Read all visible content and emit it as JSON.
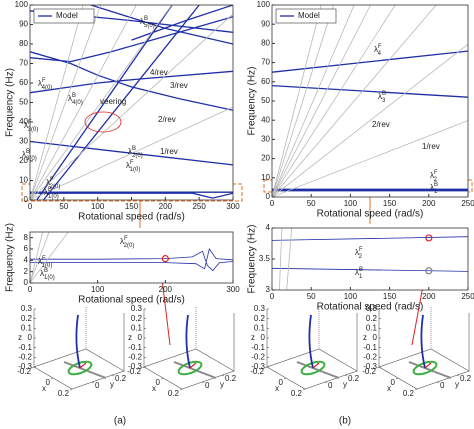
{
  "chart_data": [
    {
      "type": "line",
      "xlabel": "Rotational speed (rad/s)",
      "ylabel": "Frequency (Hz)",
      "xlim": [
        0,
        300
      ],
      "xticks": [
        0,
        50,
        100,
        150,
        200,
        250,
        300
      ],
      "ylim": [
        0,
        100
      ],
      "yticks": [
        0,
        10,
        20,
        30,
        40,
        50,
        60,
        70,
        80,
        90,
        100
      ],
      "legend": "upper left",
      "series": [
        {
          "name": "Model",
          "color": "#1f2fa8",
          "x": [
            0,
            150,
            300,
            null,
            90,
            200,
            300,
            null,
            150,
            230,
            300,
            null,
            0,
            60,
            120,
            200,
            300,
            null,
            0,
            60,
            100,
            150,
            220,
            300,
            null,
            0,
            60,
            100,
            160,
            300,
            null,
            10,
            210,
            null,
            20,
            250,
            null,
            0,
            150,
            300,
            null,
            0,
            300,
            null,
            0,
            240,
            270,
            300
          ],
          "values": [
            97,
            92,
            86,
            null,
            100,
            88,
            80,
            null,
            82,
            92,
            100,
            null,
            73,
            71,
            76,
            84,
            94,
            null,
            76,
            70,
            64,
            58,
            52,
            46,
            null,
            55,
            58,
            60,
            62,
            66,
            null,
            0,
            100,
            null,
            0,
            100,
            null,
            30,
            24,
            18,
            null,
            4,
            4,
            null,
            3.5,
            3.5,
            1,
            3.5
          ]
        },
        {
          "color": "#b8b8b8",
          "x": [
            0,
            300,
            null,
            0,
            300,
            null,
            0,
            209.4,
            null,
            0,
            157.1,
            null,
            0,
            104.7,
            null,
            0,
            78.5
          ],
          "values": [
            0,
            47.7,
            null,
            0,
            95.5,
            null,
            0,
            100,
            null,
            0,
            100,
            null,
            0,
            100,
            null,
            0,
            100
          ]
        }
      ],
      "annotations": [
        {
          "text": "λ",
          "sup": "B",
          "sub": "5(0)"
        },
        {
          "text": "λ",
          "sup": "F",
          "sub": "4(0)"
        },
        {
          "text": "λ",
          "sup": "B",
          "sub": "4(0)"
        },
        {
          "text": "λ",
          "sup": "F",
          "sub": "3(0)"
        },
        {
          "text": "λ",
          "sup": "B",
          "sub": "3(0)"
        },
        {
          "text": "λ",
          "sup": "B",
          "sub": "2(0)"
        },
        {
          "text": "λ",
          "sup": "F",
          "sub": "1(0)"
        },
        {
          "text": "λ",
          "sup": "F",
          "sub": "2(0)"
        },
        {
          "text": "λ",
          "sup": "B",
          "sub": "1(0)"
        },
        {
          "text": "4/rev",
          "color": "#d9541e"
        },
        {
          "text": "3/rev",
          "color": "#d9541e"
        },
        {
          "text": "2/rev",
          "color": "#d9541e"
        },
        {
          "text": "1/rev",
          "color": "#d9541e"
        },
        {
          "text": "veering",
          "color": "#e02020"
        }
      ]
    },
    {
      "type": "line",
      "xlabel": "Rotational speed (rad/s)",
      "ylabel": "Frequency (Hz)",
      "xlim": [
        0,
        300
      ],
      "xticks": [
        0,
        100,
        200,
        300
      ],
      "ylim": [
        0,
        9
      ],
      "yticks": [
        0,
        2,
        4,
        6,
        8
      ],
      "series": [
        {
          "color": "#1f2fa8",
          "x": [
            0,
            100,
            200,
            240,
            255,
            262,
            270,
            280,
            300,
            null,
            0,
            100,
            200,
            245,
            258,
            265,
            275,
            300
          ],
          "values": [
            4.2,
            4.2,
            4.3,
            4.6,
            5.6,
            3.1,
            2.2,
            3.6,
            3.8,
            null,
            3.6,
            3.6,
            3.6,
            3.4,
            2.5,
            6,
            4.3,
            4.1
          ]
        },
        {
          "color": "#b8b8b8",
          "x": [
            0,
            56.5,
            null,
            0,
            28.3,
            null,
            0,
            18.8
          ],
          "values": [
            0,
            9,
            null,
            0,
            9,
            null,
            0,
            9
          ]
        },
        {
          "color": "#e02020",
          "marker": "circle",
          "x": [
            200
          ],
          "values": [
            4.3
          ]
        }
      ],
      "annotations": [
        {
          "text": "λ",
          "sup": "F",
          "sub": "2(0)"
        },
        {
          "text": "λ",
          "sup": "F",
          "sub": "1(0)"
        },
        {
          "text": "λ",
          "sup": "B",
          "sub": "1(0)"
        }
      ]
    },
    {
      "type": "line",
      "xlabel": "Rotational speed (rad/s)",
      "ylabel": "Frequency (Hz)",
      "xlim": [
        0,
        250
      ],
      "xticks": [
        0,
        50,
        100,
        150,
        200,
        250
      ],
      "ylim": [
        0,
        100
      ],
      "yticks": [
        0,
        10,
        20,
        30,
        40,
        50,
        60,
        70,
        80,
        90,
        100
      ],
      "legend": "upper left",
      "series": [
        {
          "name": "Model",
          "color": "#1f2fa8",
          "x": [
            0,
            250,
            null,
            0,
            250,
            null,
            0,
            250,
            null,
            0,
            250
          ],
          "values": [
            65,
            76,
            null,
            58,
            52,
            null,
            4,
            4,
            null,
            3.3,
            3.3
          ]
        },
        {
          "color": "#b8b8b8",
          "x": [
            0,
            250,
            null,
            0,
            250,
            null,
            0,
            209.4,
            null,
            0,
            157.1,
            null,
            0,
            125.7,
            null,
            0,
            104.7,
            null,
            0,
            78.5,
            null,
            0,
            62.8
          ],
          "values": [
            0,
            39.8,
            null,
            0,
            79.6,
            null,
            0,
            100,
            null,
            0,
            100,
            null,
            0,
            100,
            null,
            0,
            100,
            null,
            0,
            100,
            null,
            0,
            100
          ]
        }
      ],
      "annotations": [
        {
          "text": "λ",
          "sup": "F",
          "sub": "4"
        },
        {
          "text": "λ",
          "sup": "B",
          "sub": "3"
        },
        {
          "text": "2/rev",
          "color": "#d9541e"
        },
        {
          "text": "1/rev",
          "color": "#d9541e"
        },
        {
          "text": "λ",
          "sup": "F",
          "sub": "2"
        },
        {
          "text": "λ",
          "sup": "B",
          "sub": "1"
        }
      ]
    },
    {
      "type": "line",
      "xlabel": "Rotational speed (rad/s)",
      "ylabel": "Frequency (Hz)",
      "xlim": [
        0,
        250
      ],
      "xticks": [
        0,
        50,
        100,
        150,
        200,
        250
      ],
      "ylim": [
        3,
        4
      ],
      "yticks": [
        3,
        3.5,
        4
      ],
      "series": [
        {
          "color": "#1f2fa8",
          "x": [
            0,
            250,
            null,
            0,
            250
          ],
          "values": [
            3.8,
            3.86,
            null,
            3.35,
            3.3
          ]
        },
        {
          "color": "#b8b8b8",
          "x": [
            18.8,
            25.1,
            null,
            9.4,
            12.6
          ],
          "values": [
            3,
            4,
            null,
            3,
            4
          ]
        },
        {
          "color": "#e02020",
          "marker": "circle",
          "x": [
            200
          ],
          "values": [
            3.84
          ]
        },
        {
          "color": "#808080",
          "marker": "circle",
          "x": [
            200
          ],
          "values": [
            3.31
          ]
        }
      ],
      "annotations": [
        {
          "text": "λ",
          "sup": "F",
          "sub": "2"
        },
        {
          "text": "λ",
          "sup": "B",
          "sub": "1"
        }
      ]
    }
  ],
  "figure": {
    "panel_labels": [
      "(a)",
      "(b)"
    ],
    "insets": [
      {
        "x_label": "x",
        "y_label": "y",
        "z_label": "z",
        "z_ticks": [
          -0.3,
          -0.2,
          -0.1,
          0,
          0.1,
          0.2,
          0.3
        ],
        "x_ticks": [
          -0.2,
          0,
          0.2
        ],
        "y_ticks": [
          0,
          0.2
        ]
      },
      {
        "x_label": "x",
        "y_label": "y",
        "z_label": "z",
        "z_ticks": [
          -0.3,
          -0.2,
          -0.1,
          0,
          0.1,
          0.2,
          0.3
        ],
        "x_ticks": [
          -0.2,
          0,
          0.2
        ],
        "y_ticks": [
          0,
          0.2
        ]
      },
      {
        "x_label": "x",
        "y_label": "y",
        "z_label": "z",
        "z_ticks": [
          -0.3,
          -0.2,
          -0.1,
          0,
          0.1,
          0.2,
          0.3
        ],
        "x_ticks": [
          -0.2,
          0,
          0.2
        ],
        "y_ticks": [
          0,
          0.2
        ]
      },
      {
        "x_label": "x",
        "y_label": "y",
        "z_label": "z",
        "z_ticks": [
          -0.3,
          -0.2,
          -0.1,
          0,
          0.1,
          0.2,
          0.3
        ],
        "x_ticks": [
          -0.2,
          0,
          0.2
        ],
        "y_ticks": [
          0,
          0.2
        ]
      }
    ]
  }
}
